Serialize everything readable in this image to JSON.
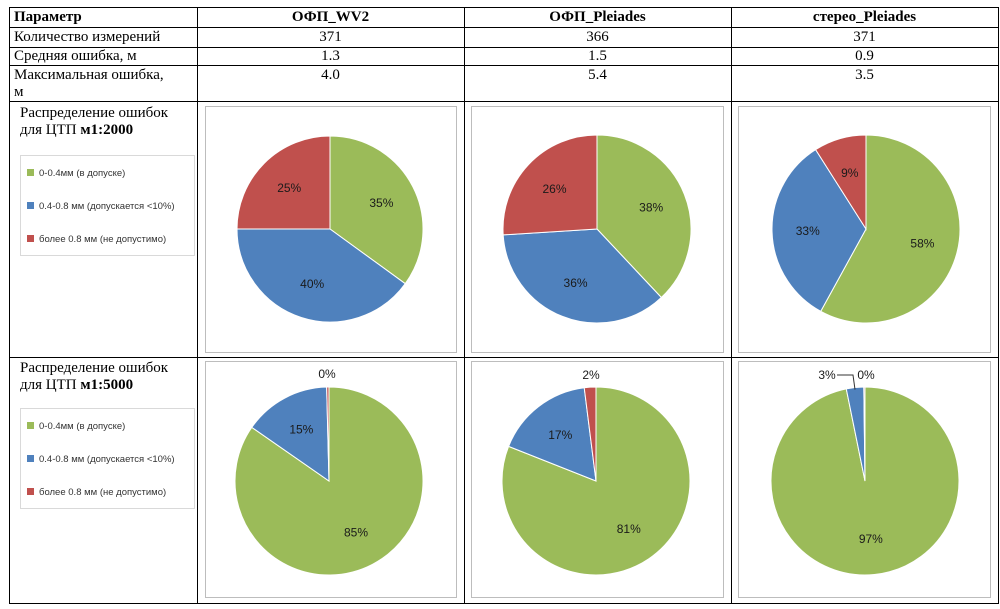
{
  "table": {
    "header": [
      "Параметр",
      "ОФП_WV2",
      "ОФП_Pleiades",
      "стерео_Pleiades"
    ],
    "rows": [
      {
        "label": "Количество измерений",
        "values": [
          "371",
          "366",
          "371"
        ]
      },
      {
        "label": "Средняя ошибка, м",
        "values": [
          "1.3",
          "1.5",
          "0.9"
        ]
      },
      {
        "label_line1": "Максимальная ошибка,",
        "label_line2": "м",
        "values": [
          "4.0",
          "5.4",
          "3.5"
        ]
      }
    ],
    "chart_rows": [
      {
        "label_line1": "Распределение ошибок",
        "label_prefix": "для ЦТП ",
        "label_scale": "м1:2000"
      },
      {
        "label_line1": "Распределение ошибок",
        "label_prefix": "для ЦТП ",
        "label_scale": "м1:5000"
      }
    ]
  },
  "legend": [
    {
      "label": "0-0.4мм (в допуске)",
      "color": "#9bbb59"
    },
    {
      "label": "0.4-0.8 мм (допускается <10%)",
      "color": "#4f81bd"
    },
    {
      "label": "более 0.8 мм (не допустимо)",
      "color": "#c0504d"
    }
  ],
  "chart_data": [
    {
      "type": "pie",
      "scale": "м1:2000",
      "column": "ОФП_WV2",
      "categories": [
        "0-0.4мм (в допуске)",
        "0.4-0.8 мм (допускается <10%)",
        "более 0.8 мм (не допустимо)"
      ],
      "values": [
        35,
        40,
        25
      ],
      "labels": [
        "35%",
        "40%",
        "25%"
      ],
      "colors": [
        "#9bbb59",
        "#4f81bd",
        "#c0504d"
      ]
    },
    {
      "type": "pie",
      "scale": "м1:2000",
      "column": "ОФП_Pleiades",
      "categories": [
        "0-0.4мм (в допуске)",
        "0.4-0.8 мм (допускается <10%)",
        "более 0.8 мм (не допустимо)"
      ],
      "values": [
        38,
        36,
        26
      ],
      "labels": [
        "38%",
        "36%",
        "26%"
      ],
      "colors": [
        "#9bbb59",
        "#4f81bd",
        "#c0504d"
      ]
    },
    {
      "type": "pie",
      "scale": "м1:2000",
      "column": "стерео_Pleiades",
      "categories": [
        "0-0.4мм (в допуске)",
        "0.4-0.8 мм (допускается <10%)",
        "более 0.8 мм (не допустимо)"
      ],
      "values": [
        58,
        33,
        9
      ],
      "labels": [
        "58%",
        "33%",
        "9%"
      ],
      "colors": [
        "#9bbb59",
        "#4f81bd",
        "#c0504d"
      ]
    },
    {
      "type": "pie",
      "scale": "м1:5000",
      "column": "ОФП_WV2",
      "categories": [
        "0-0.4мм (в допуске)",
        "0.4-0.8 мм (допускается <10%)",
        "более 0.8 мм (не допустимо)"
      ],
      "values": [
        85,
        15,
        0.4
      ],
      "labels": [
        "85%",
        "15%",
        "0%"
      ],
      "colors": [
        "#9bbb59",
        "#4f81bd",
        "#c0504d"
      ]
    },
    {
      "type": "pie",
      "scale": "м1:5000",
      "column": "ОФП_Pleiades",
      "categories": [
        "0-0.4мм (в допуске)",
        "0.4-0.8 мм (допускается <10%)",
        "более 0.8 мм (не допустимо)"
      ],
      "values": [
        81,
        17,
        2
      ],
      "labels": [
        "81%",
        "17%",
        "2%"
      ],
      "colors": [
        "#9bbb59",
        "#4f81bd",
        "#c0504d"
      ]
    },
    {
      "type": "pie",
      "scale": "м1:5000",
      "column": "стерео_Pleiades",
      "categories": [
        "0-0.4мм (в допуске)",
        "0.4-0.8 мм (допускается <10%)",
        "более 0.8 мм (не допустимо)"
      ],
      "values": [
        97,
        3,
        0.2
      ],
      "labels": [
        "97%",
        "3%",
        "0%"
      ],
      "colors": [
        "#9bbb59",
        "#4f81bd",
        "#c0504d"
      ]
    }
  ]
}
